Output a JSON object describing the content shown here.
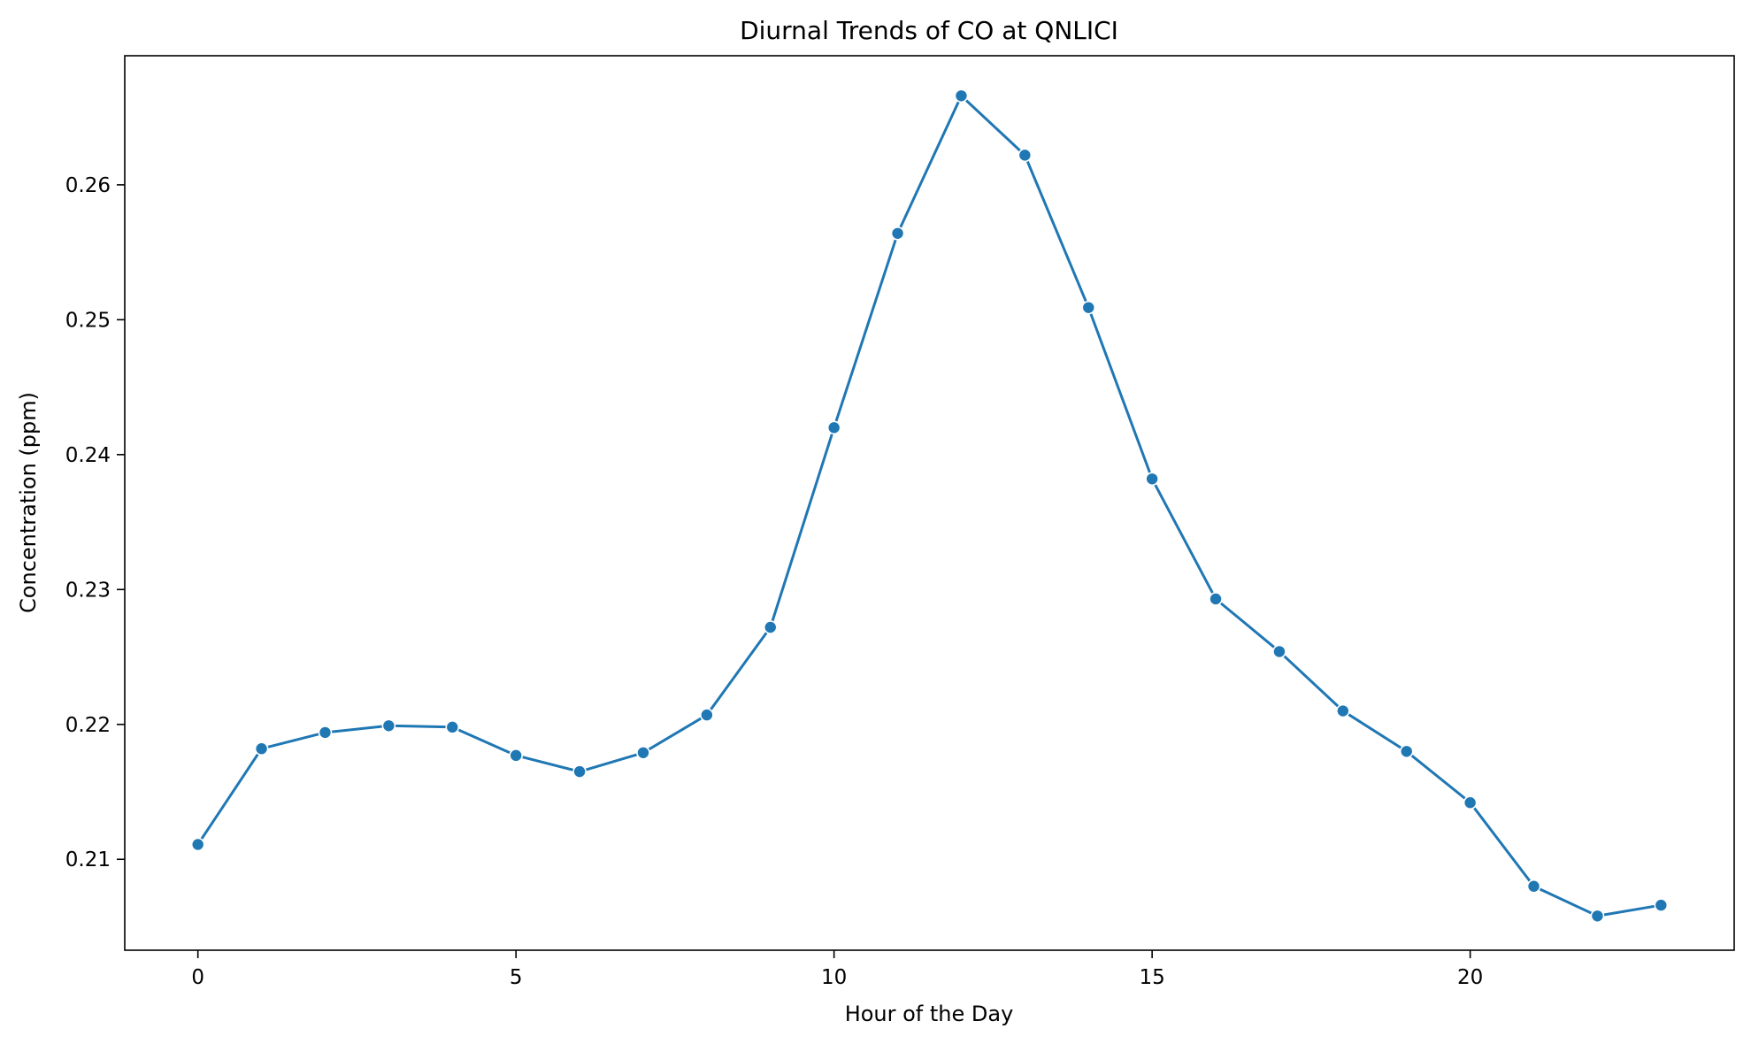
{
  "chart_data": {
    "type": "line",
    "title": "Diurnal Trends of CO at QNLICI",
    "xlabel": "Hour of the Day",
    "ylabel": "Concentration (ppm)",
    "x": [
      0,
      1,
      2,
      3,
      4,
      5,
      6,
      7,
      8,
      9,
      10,
      11,
      12,
      13,
      14,
      15,
      16,
      17,
      18,
      19,
      20,
      21,
      22,
      23
    ],
    "series": [
      {
        "values": [
          0.2111,
          0.2182,
          0.2194,
          0.2199,
          0.2198,
          0.2177,
          0.2165,
          0.2179,
          0.2207,
          0.2272,
          0.242,
          0.2564,
          0.2666,
          0.2622,
          0.2509,
          0.2382,
          0.2293,
          0.2254,
          0.221,
          0.218,
          0.2142,
          0.208,
          0.2058,
          0.2066
        ],
        "color": "#1f77b4",
        "marker": "circle"
      }
    ],
    "xlim": [
      -1.15,
      24.15
    ],
    "ylim": [
      0.20326,
      0.26957
    ],
    "xticks": [
      0,
      5,
      10,
      15,
      20
    ],
    "xtick_labels": [
      "0",
      "5",
      "10",
      "15",
      "20"
    ],
    "yticks": [
      0.21,
      0.22,
      0.23,
      0.24,
      0.25,
      0.26
    ],
    "ytick_labels": [
      "0.21",
      "0.22",
      "0.23",
      "0.24",
      "0.25",
      "0.26"
    ],
    "grid": false,
    "legend": "none"
  }
}
